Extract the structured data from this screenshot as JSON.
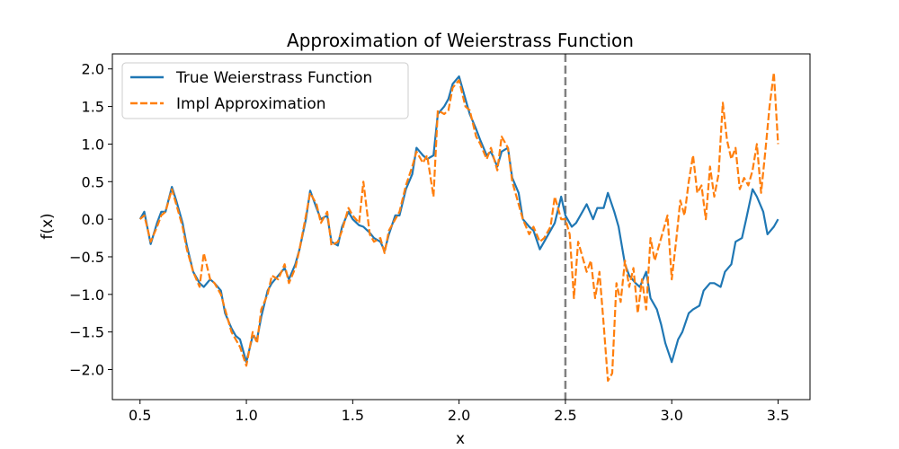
{
  "chart_data": {
    "type": "line",
    "title": "Approximation of Weierstrass Function",
    "xlabel": "x",
    "ylabel": "f(x)",
    "xlim": [
      0.37,
      3.65
    ],
    "ylim": [
      -2.4,
      2.2
    ],
    "xticks": [
      0.5,
      1.0,
      1.5,
      2.0,
      2.5,
      3.0,
      3.5
    ],
    "xtick_labels": [
      "0.5",
      "1.0",
      "1.5",
      "2.0",
      "2.5",
      "3.0",
      "3.5"
    ],
    "yticks": [
      -2.0,
      -1.5,
      -1.0,
      -0.5,
      0.0,
      0.5,
      1.0,
      1.5,
      2.0
    ],
    "ytick_labels": [
      "−2.0",
      "−1.5",
      "−1.0",
      "−0.5",
      "0.0",
      "0.5",
      "1.0",
      "1.5",
      "2.0"
    ],
    "grid": false,
    "legend_position": "upper-left",
    "vline": {
      "x": 2.5,
      "style": "dashed",
      "color": "#808080"
    },
    "series": [
      {
        "name": "True Weierstrass Function",
        "style": "solid",
        "color": "#1f77b4",
        "x": [
          0.5,
          0.52,
          0.55,
          0.58,
          0.6,
          0.62,
          0.65,
          0.67,
          0.7,
          0.72,
          0.75,
          0.78,
          0.8,
          0.83,
          0.85,
          0.88,
          0.9,
          0.93,
          0.95,
          0.97,
          1.0,
          1.03,
          1.05,
          1.07,
          1.1,
          1.12,
          1.15,
          1.18,
          1.2,
          1.23,
          1.25,
          1.28,
          1.3,
          1.33,
          1.35,
          1.38,
          1.4,
          1.43,
          1.45,
          1.48,
          1.5,
          1.53,
          1.55,
          1.58,
          1.6,
          1.63,
          1.65,
          1.67,
          1.7,
          1.72,
          1.75,
          1.78,
          1.8,
          1.83,
          1.85,
          1.88,
          1.9,
          1.93,
          1.95,
          1.97,
          2.0,
          2.03,
          2.05,
          2.08,
          2.1,
          2.13,
          2.15,
          2.18,
          2.2,
          2.23,
          2.25,
          2.28,
          2.3,
          2.33,
          2.35,
          2.38,
          2.4,
          2.43,
          2.45,
          2.48,
          2.5,
          2.53,
          2.55,
          2.58,
          2.6,
          2.63,
          2.65,
          2.68,
          2.7,
          2.73,
          2.75,
          2.78,
          2.8,
          2.83,
          2.85,
          2.88,
          2.9,
          2.93,
          2.95,
          2.97,
          3.0,
          3.03,
          3.05,
          3.08,
          3.1,
          3.13,
          3.15,
          3.18,
          3.2,
          3.23,
          3.25,
          3.28,
          3.3,
          3.33,
          3.35,
          3.38,
          3.4,
          3.43,
          3.45,
          3.48,
          3.5
        ],
        "y": [
          0.0,
          0.1,
          -0.33,
          -0.05,
          0.1,
          0.1,
          0.43,
          0.25,
          -0.05,
          -0.35,
          -0.7,
          -0.85,
          -0.9,
          -0.8,
          -0.85,
          -0.95,
          -1.25,
          -1.45,
          -1.55,
          -1.6,
          -1.9,
          -1.55,
          -1.6,
          -1.3,
          -0.95,
          -0.85,
          -0.75,
          -0.65,
          -0.8,
          -0.6,
          -0.4,
          0.0,
          0.38,
          0.15,
          0.0,
          0.05,
          -0.3,
          -0.35,
          -0.1,
          0.1,
          0.0,
          -0.08,
          -0.1,
          -0.18,
          -0.25,
          -0.3,
          -0.42,
          -0.2,
          0.05,
          0.05,
          0.4,
          0.6,
          0.95,
          0.85,
          0.8,
          0.85,
          1.4,
          1.5,
          1.6,
          1.8,
          1.9,
          1.6,
          1.4,
          1.2,
          1.05,
          0.85,
          0.9,
          0.7,
          0.9,
          0.95,
          0.55,
          0.35,
          0.0,
          -0.1,
          -0.15,
          -0.4,
          -0.3,
          -0.15,
          -0.05,
          0.3,
          0.05,
          -0.1,
          -0.05,
          0.1,
          0.2,
          0.0,
          0.15,
          0.15,
          0.35,
          0.1,
          -0.1,
          -0.6,
          -0.75,
          -0.85,
          -0.9,
          -0.7,
          -1.05,
          -1.2,
          -1.4,
          -1.65,
          -1.9,
          -1.6,
          -1.5,
          -1.25,
          -1.2,
          -1.15,
          -0.95,
          -0.85,
          -0.85,
          -0.9,
          -0.7,
          -0.6,
          -0.3,
          -0.25,
          0.0,
          0.4,
          0.3,
          0.1,
          -0.2,
          -0.1,
          0.0
        ]
      },
      {
        "name": "Impl Approximation",
        "style": "dashed",
        "color": "#ff7f0e",
        "x": [
          0.5,
          0.52,
          0.55,
          0.58,
          0.6,
          0.62,
          0.65,
          0.67,
          0.7,
          0.72,
          0.75,
          0.78,
          0.8,
          0.83,
          0.85,
          0.88,
          0.9,
          0.93,
          0.95,
          0.97,
          1.0,
          1.03,
          1.05,
          1.07,
          1.1,
          1.12,
          1.15,
          1.18,
          1.2,
          1.23,
          1.25,
          1.28,
          1.3,
          1.33,
          1.35,
          1.38,
          1.4,
          1.43,
          1.45,
          1.48,
          1.5,
          1.53,
          1.55,
          1.58,
          1.6,
          1.63,
          1.65,
          1.67,
          1.7,
          1.72,
          1.75,
          1.78,
          1.8,
          1.83,
          1.85,
          1.88,
          1.9,
          1.93,
          1.95,
          1.97,
          2.0,
          2.03,
          2.05,
          2.08,
          2.1,
          2.13,
          2.15,
          2.18,
          2.2,
          2.23,
          2.25,
          2.28,
          2.3,
          2.33,
          2.35,
          2.38,
          2.4,
          2.43,
          2.45,
          2.48,
          2.5,
          2.52,
          2.54,
          2.56,
          2.58,
          2.6,
          2.62,
          2.64,
          2.66,
          2.68,
          2.7,
          2.72,
          2.74,
          2.76,
          2.78,
          2.8,
          2.82,
          2.84,
          2.86,
          2.88,
          2.9,
          2.92,
          2.94,
          2.96,
          2.98,
          3.0,
          3.02,
          3.04,
          3.06,
          3.08,
          3.1,
          3.12,
          3.14,
          3.16,
          3.18,
          3.2,
          3.22,
          3.24,
          3.26,
          3.28,
          3.3,
          3.32,
          3.34,
          3.36,
          3.38,
          3.4,
          3.42,
          3.44,
          3.46,
          3.48,
          3.5
        ],
        "y": [
          0.0,
          0.05,
          -0.3,
          -0.1,
          0.05,
          0.1,
          0.4,
          0.2,
          -0.1,
          -0.4,
          -0.7,
          -0.9,
          -0.45,
          -0.8,
          -0.85,
          -1.0,
          -1.2,
          -1.5,
          -1.6,
          -1.7,
          -1.95,
          -1.5,
          -1.65,
          -1.2,
          -1.0,
          -0.75,
          -0.8,
          -0.6,
          -0.85,
          -0.65,
          -0.4,
          0.05,
          0.35,
          0.2,
          -0.05,
          0.1,
          -0.35,
          -0.3,
          -0.15,
          0.15,
          0.05,
          -0.05,
          0.5,
          -0.2,
          -0.3,
          -0.25,
          -0.45,
          -0.15,
          0.0,
          0.1,
          0.45,
          0.7,
          0.9,
          0.75,
          0.85,
          0.3,
          1.45,
          1.4,
          1.45,
          1.75,
          1.85,
          1.5,
          1.45,
          1.1,
          1.0,
          0.8,
          0.95,
          0.65,
          1.1,
          0.95,
          0.5,
          0.2,
          0.0,
          -0.2,
          -0.1,
          -0.3,
          -0.25,
          -0.1,
          0.3,
          0.0,
          0.0,
          -0.2,
          -1.05,
          -0.3,
          -0.5,
          -0.7,
          -0.55,
          -1.05,
          -0.7,
          -1.4,
          -2.15,
          -2.05,
          -0.85,
          -1.1,
          -0.55,
          -0.9,
          -0.65,
          -1.25,
          -0.8,
          -1.2,
          -0.25,
          -0.55,
          -0.35,
          -0.15,
          0.05,
          -0.8,
          -0.3,
          0.25,
          0.05,
          0.5,
          0.85,
          0.35,
          0.45,
          0.0,
          0.7,
          0.3,
          0.6,
          1.55,
          1.05,
          0.8,
          0.95,
          0.4,
          0.55,
          0.45,
          0.65,
          1.0,
          0.35,
          0.9,
          1.5,
          1.95,
          1.0
        ]
      }
    ]
  }
}
